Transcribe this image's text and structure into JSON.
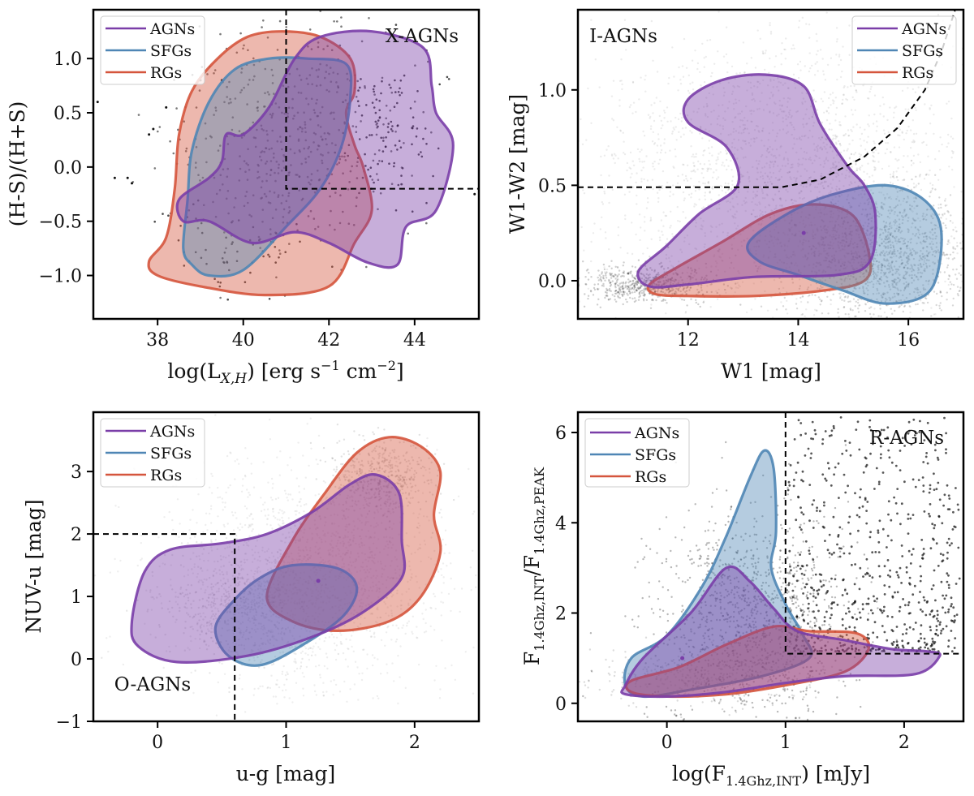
{
  "chart_data": [
    {
      "type": "scatter",
      "panel": "top-left",
      "xlabel": "log(L",
      "xlabel_sub": "X,H",
      "xlabel_unit": ") [erg s",
      "xlabel_sup1": "−1",
      "xlabel_unit2": " cm",
      "xlabel_sup2": "−2",
      "xlabel_end": "]",
      "ylabel": "(H-S)/(H+S)",
      "xlim": [
        36.5,
        45.5
      ],
      "ylim": [
        -1.4,
        1.45
      ],
      "xticks": [
        38,
        40,
        42,
        44
      ],
      "xtick_labels": [
        "38",
        "40",
        "42",
        "44"
      ],
      "yticks": [
        -1.0,
        -0.5,
        0.0,
        0.5,
        1.0
      ],
      "ytick_labels": [
        "−1.0",
        "−0.5",
        "0.0",
        "0.5",
        "1.0"
      ],
      "annotation": "X-AGNs",
      "legend": [
        "AGNs",
        "SFGs",
        "RGs"
      ],
      "legend_loc": "upper-left",
      "selection_lines": [
        [
          [
            41,
            1.45
          ],
          [
            41,
            -0.2
          ],
          [
            45.5,
            -0.2
          ]
        ]
      ],
      "contours": [
        {
          "name": "RGs",
          "points": [
            [
              37.8,
              -0.87
            ],
            [
              38.2,
              -0.65
            ],
            [
              38.4,
              -0.2
            ],
            [
              38.5,
              0.3
            ],
            [
              38.8,
              0.7
            ],
            [
              39.4,
              1.0
            ],
            [
              40.1,
              1.2
            ],
            [
              40.9,
              1.25
            ],
            [
              41.8,
              1.2
            ],
            [
              42.5,
              1.0
            ],
            [
              42.6,
              0.7
            ],
            [
              42.4,
              0.5
            ],
            [
              42.6,
              0.2
            ],
            [
              42.8,
              0.0
            ],
            [
              43.0,
              -0.4
            ],
            [
              42.6,
              -0.7
            ],
            [
              42.0,
              -1.1
            ],
            [
              40.5,
              -1.18
            ],
            [
              39.0,
              -1.1
            ],
            [
              38.0,
              -1.0
            ]
          ]
        },
        {
          "name": "SFGs",
          "points": [
            [
              38.6,
              -0.75
            ],
            [
              38.7,
              -0.3
            ],
            [
              38.8,
              0.15
            ],
            [
              39.2,
              0.6
            ],
            [
              39.8,
              0.9
            ],
            [
              40.6,
              1.0
            ],
            [
              41.5,
              1.0
            ],
            [
              42.4,
              0.95
            ],
            [
              42.5,
              0.65
            ],
            [
              42.3,
              0.2
            ],
            [
              41.8,
              -0.2
            ],
            [
              41.0,
              -0.55
            ],
            [
              40.0,
              -0.95
            ],
            [
              39.2,
              -1.0
            ],
            [
              38.8,
              -0.9
            ]
          ]
        },
        {
          "name": "AGNs",
          "points": [
            [
              38.5,
              -0.3
            ],
            [
              39.2,
              -0.1
            ],
            [
              39.5,
              0.05
            ],
            [
              39.6,
              0.3
            ],
            [
              40.0,
              0.3
            ],
            [
              40.6,
              0.55
            ],
            [
              41.2,
              1.0
            ],
            [
              41.8,
              1.2
            ],
            [
              43.0,
              1.25
            ],
            [
              44.2,
              1.1
            ],
            [
              44.4,
              0.75
            ],
            [
              44.5,
              0.5
            ],
            [
              44.9,
              0.2
            ],
            [
              44.5,
              -0.4
            ],
            [
              43.8,
              -0.55
            ],
            [
              43.6,
              -0.9
            ],
            [
              42.9,
              -0.88
            ],
            [
              42.0,
              -0.7
            ],
            [
              41.2,
              -0.6
            ],
            [
              40.2,
              -0.7
            ],
            [
              39.2,
              -0.5
            ],
            [
              38.6,
              -0.5
            ]
          ]
        }
      ],
      "marker_points": []
    },
    {
      "type": "scatter",
      "panel": "top-right",
      "xlabel": "W1 [mag]",
      "ylabel": "W1-W2 [mag]",
      "xlim": [
        10.0,
        17.0
      ],
      "ylim": [
        -0.2,
        1.42
      ],
      "xticks": [
        12,
        14,
        16
      ],
      "xtick_labels": [
        "12",
        "14",
        "16"
      ],
      "yticks": [
        0.0,
        0.5,
        1.0
      ],
      "ytick_labels": [
        "0.0",
        "0.5",
        "1.0"
      ],
      "annotation": "I-AGNs",
      "legend": [
        "AGNs",
        "SFGs",
        "RGs"
      ],
      "legend_loc": "upper-right",
      "selection_lines": [
        [
          [
            10.0,
            0.49
          ],
          [
            13.7,
            0.49
          ],
          [
            14.4,
            0.53
          ],
          [
            15.2,
            0.65
          ],
          [
            15.8,
            0.8
          ],
          [
            16.3,
            1.0
          ],
          [
            16.6,
            1.2
          ],
          [
            16.85,
            1.42
          ]
        ]
      ],
      "contours": [
        {
          "name": "RGs",
          "points": [
            [
              11.3,
              -0.02
            ],
            [
              11.8,
              0.07
            ],
            [
              12.6,
              0.2
            ],
            [
              13.5,
              0.35
            ],
            [
              14.3,
              0.4
            ],
            [
              15.0,
              0.34
            ],
            [
              15.3,
              0.12
            ],
            [
              15.2,
              0.0
            ],
            [
              14.5,
              -0.05
            ],
            [
              13.2,
              -0.08
            ],
            [
              12.0,
              -0.08
            ],
            [
              11.4,
              -0.07
            ]
          ]
        },
        {
          "name": "SFGs",
          "points": [
            [
              13.1,
              0.2
            ],
            [
              13.8,
              0.35
            ],
            [
              14.6,
              0.45
            ],
            [
              15.6,
              0.5
            ],
            [
              16.3,
              0.42
            ],
            [
              16.6,
              0.25
            ],
            [
              16.4,
              -0.05
            ],
            [
              15.6,
              -0.12
            ],
            [
              14.8,
              -0.05
            ],
            [
              14.0,
              0.03
            ],
            [
              13.3,
              0.1
            ]
          ]
        },
        {
          "name": "AGNs",
          "points": [
            [
              11.1,
              0.05
            ],
            [
              11.6,
              0.18
            ],
            [
              12.2,
              0.35
            ],
            [
              12.9,
              0.5
            ],
            [
              12.7,
              0.7
            ],
            [
              12.0,
              0.83
            ],
            [
              12.0,
              0.95
            ],
            [
              12.6,
              1.05
            ],
            [
              13.4,
              1.08
            ],
            [
              14.1,
              1.02
            ],
            [
              14.4,
              0.82
            ],
            [
              14.9,
              0.6
            ],
            [
              15.2,
              0.5
            ],
            [
              15.4,
              0.35
            ],
            [
              15.3,
              0.1
            ],
            [
              14.7,
              0.03
            ],
            [
              13.2,
              0.02
            ],
            [
              12.0,
              -0.02
            ],
            [
              11.3,
              -0.03
            ]
          ]
        }
      ],
      "marker_points": [
        {
          "x": 14.1,
          "y": 0.25
        }
      ]
    },
    {
      "type": "scatter",
      "panel": "bottom-left",
      "xlabel": "u-g [mag]",
      "ylabel": "NUV-u [mag]",
      "xlim": [
        -0.5,
        2.5
      ],
      "ylim": [
        -1.0,
        3.95
      ],
      "xticks": [
        0,
        1,
        2
      ],
      "xtick_labels": [
        "0",
        "1",
        "2"
      ],
      "yticks": [
        -1,
        0,
        1,
        2,
        3
      ],
      "ytick_labels": [
        "−1",
        "0",
        "1",
        "2",
        "3"
      ],
      "annotation": "O-AGNs",
      "legend": [
        "AGNs",
        "SFGs",
        "RGs"
      ],
      "legend_loc": "upper-left",
      "selection_lines": [
        [
          [
            -0.5,
            2.0
          ],
          [
            0.6,
            2.0
          ],
          [
            0.6,
            -1.0
          ]
        ]
      ],
      "contours": [
        {
          "name": "RGs",
          "points": [
            [
              0.85,
              1.0
            ],
            [
              1.05,
              1.9
            ],
            [
              1.3,
              2.65
            ],
            [
              1.55,
              3.3
            ],
            [
              1.8,
              3.55
            ],
            [
              2.05,
              3.4
            ],
            [
              2.2,
              3.0
            ],
            [
              2.15,
              2.3
            ],
            [
              2.2,
              1.7
            ],
            [
              2.05,
              1.0
            ],
            [
              1.8,
              0.6
            ],
            [
              1.4,
              0.45
            ],
            [
              1.05,
              0.6
            ]
          ]
        },
        {
          "name": "SFGs",
          "points": [
            [
              0.45,
              0.5
            ],
            [
              0.6,
              0.95
            ],
            [
              0.8,
              1.3
            ],
            [
              1.05,
              1.5
            ],
            [
              1.4,
              1.45
            ],
            [
              1.55,
              1.15
            ],
            [
              1.45,
              0.7
            ],
            [
              1.15,
              0.25
            ],
            [
              0.8,
              -0.1
            ],
            [
              0.55,
              0.05
            ]
          ]
        },
        {
          "name": "AGNs",
          "points": [
            [
              -0.2,
              0.6
            ],
            [
              -0.1,
              1.4
            ],
            [
              0.1,
              1.75
            ],
            [
              0.5,
              1.85
            ],
            [
              0.85,
              2.0
            ],
            [
              1.2,
              2.35
            ],
            [
              1.5,
              2.8
            ],
            [
              1.7,
              2.95
            ],
            [
              1.88,
              2.65
            ],
            [
              1.9,
              1.9
            ],
            [
              1.9,
              1.3
            ],
            [
              1.6,
              0.75
            ],
            [
              1.2,
              0.35
            ],
            [
              0.7,
              0.05
            ],
            [
              0.15,
              -0.05
            ],
            [
              -0.15,
              0.2
            ]
          ]
        }
      ],
      "marker_points": [
        {
          "x": 1.25,
          "y": 1.25
        }
      ]
    },
    {
      "type": "scatter",
      "panel": "bottom-right",
      "xlabel": "log(F",
      "xlabel_sub": "1.4Ghz,INT",
      "xlabel_unit": ") [mJy]",
      "ylabel": "F",
      "ylabel_sub1": "1.4Ghz,INT",
      "ylabel_mid": "/F",
      "ylabel_sub2": "1.4Ghz,PEAK",
      "xlim": [
        -0.75,
        2.5
      ],
      "ylim": [
        -0.4,
        6.45
      ],
      "xticks": [
        0,
        1,
        2
      ],
      "xtick_labels": [
        "0",
        "1",
        "2"
      ],
      "yticks": [
        0,
        2,
        4,
        6
      ],
      "ytick_labels": [
        "0",
        "2",
        "4",
        "6"
      ],
      "annotation": "R-AGNs",
      "legend": [
        "AGNs",
        "SFGs",
        "RGs"
      ],
      "legend_loc": "upper-left",
      "selection_lines": [
        [
          [
            1.0,
            6.45
          ],
          [
            1.0,
            1.1
          ],
          [
            2.5,
            1.1
          ]
        ]
      ],
      "contours": [
        {
          "name": "SFGs",
          "points": [
            [
              -0.35,
              0.4
            ],
            [
              -0.3,
              1.0
            ],
            [
              0.0,
              1.5
            ],
            [
              0.3,
              2.6
            ],
            [
              0.5,
              3.7
            ],
            [
              0.7,
              5.0
            ],
            [
              0.82,
              5.6
            ],
            [
              0.9,
              5.2
            ],
            [
              0.92,
              3.8
            ],
            [
              0.88,
              3.0
            ],
            [
              1.0,
              2.2
            ],
            [
              1.15,
              1.5
            ],
            [
              1.2,
              1.0
            ],
            [
              0.8,
              0.6
            ],
            [
              0.2,
              0.3
            ],
            [
              -0.2,
              0.15
            ]
          ]
        },
        {
          "name": "RGs",
          "points": [
            [
              -0.3,
              0.5
            ],
            [
              0.1,
              0.8
            ],
            [
              0.5,
              1.3
            ],
            [
              0.9,
              1.7
            ],
            [
              1.2,
              1.6
            ],
            [
              1.6,
              1.55
            ],
            [
              1.7,
              1.2
            ],
            [
              1.5,
              0.7
            ],
            [
              1.0,
              0.4
            ],
            [
              0.5,
              0.2
            ],
            [
              0.0,
              0.15
            ],
            [
              -0.3,
              0.25
            ]
          ]
        },
        {
          "name": "AGNs",
          "points": [
            [
              -0.35,
              0.4
            ],
            [
              -0.2,
              1.0
            ],
            [
              0.2,
              2.0
            ],
            [
              0.5,
              3.0
            ],
            [
              0.7,
              2.7
            ],
            [
              0.9,
              2.1
            ],
            [
              1.1,
              1.6
            ],
            [
              1.5,
              1.4
            ],
            [
              1.9,
              1.2
            ],
            [
              2.2,
              1.15
            ],
            [
              2.3,
              1.05
            ],
            [
              2.1,
              0.65
            ],
            [
              1.5,
              0.6
            ],
            [
              1.0,
              0.45
            ],
            [
              0.5,
              0.25
            ],
            [
              0.0,
              0.15
            ],
            [
              -0.35,
              0.2
            ]
          ]
        }
      ],
      "marker_points": [
        {
          "x": 0.13,
          "y": 1.0
        }
      ]
    }
  ],
  "colors": {
    "AGNs": "#7a3ea8",
    "SFGs": "#4f86b5",
    "RGs": "#d5553d",
    "points": "#111111"
  }
}
